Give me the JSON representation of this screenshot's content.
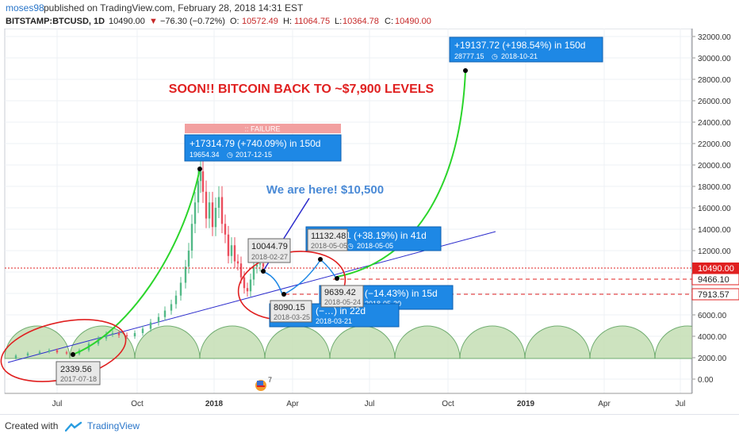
{
  "header": {
    "username": "moses98",
    "published_text": "published on TradingView.com, February 28, 2018 14:31 EST"
  },
  "ticker": {
    "symbol": "BITSTAMP:BTCUSD, 1D",
    "price": "10490.00",
    "change": "−76.30 (−0.72%)",
    "open_label": "O:",
    "open": "10572.49",
    "high_label": "H:",
    "high": "11064.75",
    "low_label": "L:",
    "low": "10364.78",
    "close_label": "C:",
    "close": "10490.00"
  },
  "annotations": {
    "headline": "SOON!! BITCOIN BACK TO ~$7,900 LEVELS",
    "here_text": "We are here! $10,500",
    "failure_label": ":: FAILURE",
    "box_peak": {
      "line1": "+17314.79 (+740.09%) in 150d",
      "line2a": "19654.34",
      "line2b": "2017-12-15"
    },
    "box_target": {
      "line1": "+19137.72 (+198.54%) in 150d",
      "line2a": "28777.15",
      "line2b": "2018-10-21"
    },
    "box_mid": {
      "line1": "1 (+38.19%) in 41d",
      "line2": "2018-05-05"
    },
    "box_drop": {
      "line1": "(−14.43%) in 15d",
      "line2": "2018-05-20"
    },
    "box_low": {
      "line1": "(−…) in 22d",
      "line2": "2018-03-21"
    },
    "tag_low": {
      "value": "2339.56",
      "date": "2017-07-18"
    },
    "tag_now": {
      "value": "10044.79",
      "date": "2018-02-27"
    },
    "tag_mar": {
      "value": "8090.15",
      "date": "2018-03-25"
    },
    "tag_may5": {
      "value": "11132.48",
      "date": "2018-05-05"
    },
    "tag_may24": {
      "value": "9639.42",
      "date": "2018-05-24"
    },
    "small_label": "7"
  },
  "price_axis": {
    "labels": [
      "32000.00",
      "30000.00",
      "28000.00",
      "26000.00",
      "24000.00",
      "22000.00",
      "20000.00",
      "18000.00",
      "16000.00",
      "14000.00",
      "12000.00",
      "10000.00",
      "8000.00",
      "6000.00",
      "4000.00",
      "2000.00",
      "0.00"
    ],
    "badge_current": "10490.00",
    "badge_9466": "9466.10",
    "badge_7913": "7913.57"
  },
  "time_axis": {
    "labels": [
      "Jul",
      "Oct",
      "2018",
      "Apr",
      "Jul",
      "Oct",
      "2019",
      "Apr",
      "Jul"
    ]
  },
  "colors": {
    "candle_up": "#53b987",
    "candle_down": "#eb4d5c",
    "accent_blue": "#1e88e5",
    "red": "#e02020",
    "green": "#2bd52b"
  },
  "footer": {
    "created_with": "Created with",
    "brand": "TradingView"
  }
}
